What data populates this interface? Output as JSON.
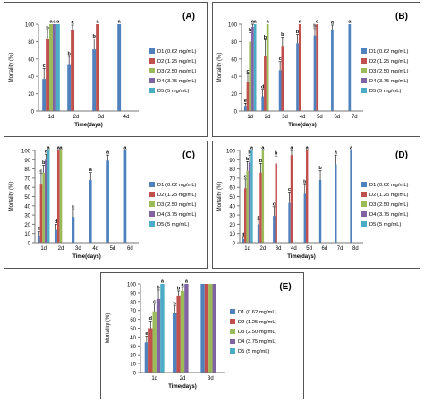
{
  "colors": [
    "#4F81BD",
    "#C0504D",
    "#9BBB59",
    "#8064A2",
    "#4BACC6"
  ],
  "legend": [
    "D1 (0.62 mg/mL)",
    "D2 (1.25 mg/mL)",
    "D3 (2.50 mg/mL)",
    "D4 (3.75 mg/mL)",
    "D5 (5 mg/mL)"
  ],
  "chart_data": [
    {
      "type": "bar",
      "title": "(A)",
      "xlabel": "Time(days)",
      "ylabel": "Mortality (%)",
      "ylim": [
        0,
        100
      ],
      "yticks": [
        "0",
        "20",
        "40",
        "60",
        "80",
        "100"
      ],
      "categories": [
        "1d",
        "2d",
        "3d",
        "4d"
      ],
      "series": [
        {
          "name": "D1 (0.62 mg/mL)",
          "values": [
            37,
            53,
            71,
            100
          ],
          "errors": [
            12,
            10,
            12,
            0
          ],
          "labels": [
            "c",
            "b",
            "b",
            "a"
          ]
        },
        {
          "name": "D2 (1.25 mg/mL)",
          "values": [
            83,
            93,
            100,
            null
          ],
          "errors": [
            10,
            6,
            0,
            null
          ],
          "labels": [
            "b",
            "a",
            "a",
            ""
          ]
        },
        {
          "name": "D3 (2.50 mg/mL)",
          "values": [
            100,
            null,
            null,
            null
          ],
          "errors": [
            0,
            null,
            null,
            null
          ],
          "labels": [
            "a",
            "",
            "",
            ""
          ]
        },
        {
          "name": "D4 (3.75 mg/mL)",
          "values": [
            100,
            null,
            null,
            null
          ],
          "errors": [
            0,
            null,
            null,
            null
          ],
          "labels": [
            "a",
            "",
            "",
            ""
          ]
        },
        {
          "name": "D5 (5 mg/mL)",
          "values": [
            100,
            null,
            null,
            null
          ],
          "errors": [
            0,
            null,
            null,
            null
          ],
          "labels": [
            "a",
            "",
            "",
            ""
          ]
        }
      ]
    },
    {
      "type": "bar",
      "title": "(B)",
      "xlabel": "Time(days)",
      "ylabel": "Mortality (%)",
      "ylim": [
        0,
        100
      ],
      "yticks": [
        "0",
        "20",
        "40",
        "60",
        "80",
        "100"
      ],
      "categories": [
        "1d",
        "2d",
        "3d",
        "4d",
        "5d",
        "6d",
        "7d"
      ],
      "series": [
        {
          "name": "D1 (0.62 mg/mL)",
          "values": [
            6,
            17,
            47,
            78,
            87,
            94,
            100
          ],
          "errors": [
            3,
            8,
            10,
            10,
            8,
            5,
            0
          ],
          "labels": [
            "e",
            "d",
            "c",
            "b",
            "b",
            "a",
            "a"
          ]
        },
        {
          "name": "D2 (1.25 mg/mL)",
          "values": [
            33,
            64,
            75,
            100,
            100,
            null,
            null
          ],
          "errors": [
            10,
            18,
            10,
            0,
            0,
            null,
            null
          ],
          "labels": [
            "c",
            "b",
            "b",
            "a",
            "a",
            "",
            ""
          ]
        },
        {
          "name": "D3 (2.50 mg/mL)",
          "values": [
            80,
            100,
            null,
            null,
            null,
            null,
            null
          ],
          "errors": [
            10,
            0,
            null,
            null,
            null,
            null,
            null
          ],
          "labels": [
            "b",
            "a",
            "",
            "",
            "",
            "",
            ""
          ]
        },
        {
          "name": "D4 (3.75 mg/mL)",
          "values": [
            97,
            null,
            null,
            null,
            null,
            null,
            null
          ],
          "errors": [
            3,
            null,
            null,
            null,
            null,
            null,
            null
          ],
          "labels": [
            "a",
            "",
            "",
            "",
            "",
            "",
            ""
          ]
        },
        {
          "name": "D5 (5 mg/mL)",
          "values": [
            100,
            null,
            null,
            null,
            null,
            null,
            null
          ],
          "errors": [
            0,
            null,
            null,
            null,
            null,
            null,
            null
          ],
          "labels": [
            "a",
            "",
            "",
            "",
            "",
            "",
            ""
          ]
        }
      ]
    },
    {
      "type": "bar",
      "title": "(C)",
      "xlabel": "Time(days)",
      "ylabel": "Mortality (%)",
      "ylim": [
        0,
        100
      ],
      "yticks": [
        "0",
        "10",
        "20",
        "30",
        "40",
        "50",
        "60",
        "70",
        "80",
        "90",
        "100"
      ],
      "categories": [
        "1d",
        "2d",
        "3d",
        "4d",
        "5d",
        "6d"
      ],
      "series": [
        {
          "name": "D1 (0.62 mg/mL)",
          "values": [
            8,
            14,
            28,
            68,
            89,
            100
          ],
          "errors": [
            4,
            6,
            8,
            8,
            6,
            0
          ],
          "labels": [
            "e",
            "d",
            "c",
            "a",
            "a",
            "a"
          ]
        },
        {
          "name": "D2 (1.25 mg/mL)",
          "values": [
            63,
            100,
            null,
            null,
            null,
            null
          ],
          "errors": [
            12,
            0,
            null,
            null,
            null,
            null
          ],
          "labels": [
            "c",
            "a",
            "",
            "",
            "",
            ""
          ]
        },
        {
          "name": "D3 (2.50 mg/mL)",
          "values": [
            76,
            100,
            null,
            null,
            null,
            null
          ],
          "errors": [
            8,
            0,
            null,
            null,
            null,
            null
          ],
          "labels": [
            "b",
            "a",
            "",
            "",
            "",
            ""
          ]
        },
        {
          "name": "D4 (3.75 mg/mL)",
          "values": [
            90,
            null,
            null,
            null,
            null,
            null
          ],
          "errors": [
            6,
            null,
            null,
            null,
            null,
            null
          ],
          "labels": [
            "a",
            "",
            "",
            "",
            "",
            ""
          ]
        },
        {
          "name": "D5 (5 mg/mL)",
          "values": [
            100,
            null,
            null,
            null,
            null,
            null
          ],
          "errors": [
            0,
            null,
            null,
            null,
            null,
            null
          ],
          "labels": [
            "a",
            "",
            "",
            "",
            "",
            ""
          ]
        }
      ]
    },
    {
      "type": "bar",
      "title": "(D)",
      "xlabel": "Time(days)",
      "ylabel": "Mortality (%)",
      "ylim": [
        0,
        100
      ],
      "yticks": [
        "0",
        "10",
        "20",
        "30",
        "40",
        "50",
        "60",
        "70",
        "80",
        "90",
        "100"
      ],
      "categories": [
        "1d",
        "2d",
        "3d",
        "4d",
        "5d",
        "6d",
        "7d",
        "8d"
      ],
      "series": [
        {
          "name": "D1 (0.62 mg/mL)",
          "values": [
            4,
            20,
            29,
            43,
            53,
            68,
            85,
            100
          ],
          "errors": [
            2,
            5,
            10,
            12,
            10,
            10,
            10,
            0
          ],
          "labels": [
            "d",
            "c",
            "c",
            "c",
            "b",
            "b",
            "a",
            "a"
          ]
        },
        {
          "name": "D2 (1.25 mg/mL)",
          "values": [
            59,
            76,
            86,
            95,
            100,
            null,
            null,
            null
          ],
          "errors": [
            10,
            10,
            8,
            5,
            0,
            null,
            null,
            null
          ],
          "labels": [
            "c",
            "b",
            "b",
            "a",
            "a",
            "",
            "",
            ""
          ]
        },
        {
          "name": "D3 (2.50 mg/mL)",
          "values": [
            78,
            100,
            null,
            null,
            null,
            null,
            null,
            null
          ],
          "errors": [
            10,
            0,
            null,
            null,
            null,
            null,
            null,
            null
          ],
          "labels": [
            "b",
            "a",
            "",
            "",
            "",
            "",
            "",
            ""
          ]
        },
        {
          "name": "D4 (3.75 mg/mL)",
          "values": [
            87,
            null,
            null,
            null,
            null,
            null,
            null,
            null
          ],
          "errors": [
            8,
            null,
            null,
            null,
            null,
            null,
            null,
            null
          ],
          "labels": [
            "b",
            "",
            "",
            "",
            "",
            "",
            "",
            ""
          ]
        },
        {
          "name": "D5 (5 mg/mL)",
          "values": [
            100,
            null,
            null,
            null,
            null,
            null,
            null,
            null
          ],
          "errors": [
            0,
            null,
            null,
            null,
            null,
            null,
            null,
            null
          ],
          "labels": [
            "a",
            "",
            "",
            "",
            "",
            "",
            "",
            ""
          ]
        }
      ]
    },
    {
      "type": "bar",
      "title": "(E)",
      "xlabel": "Time(days)",
      "ylabel": "Mortality (%)",
      "ylim": [
        0,
        100
      ],
      "yticks": [
        "0",
        "10",
        "20",
        "30",
        "40",
        "50",
        "60",
        "70",
        "80",
        "90",
        "100"
      ],
      "categories": [
        "1d",
        "2d",
        "3d"
      ],
      "series": [
        {
          "name": "D1 (0.62 mg/mL)",
          "values": [
            34,
            67,
            100
          ],
          "errors": [
            7,
            8,
            0
          ],
          "labels": [
            "e",
            "b",
            ""
          ]
        },
        {
          "name": "D2 (1.25 mg/mL)",
          "values": [
            50,
            87,
            100
          ],
          "errors": [
            8,
            5,
            0
          ],
          "labels": [
            "d",
            "b",
            ""
          ]
        },
        {
          "name": "D3 (2.50 mg/mL)",
          "values": [
            69,
            92,
            100
          ],
          "errors": [
            8,
            4,
            0
          ],
          "labels": [
            "c",
            "a",
            ""
          ]
        },
        {
          "name": "D4 (3.75 mg/mL)",
          "values": [
            83,
            100,
            100
          ],
          "errors": [
            10,
            0,
            0
          ],
          "labels": [
            "b",
            "a",
            ""
          ]
        },
        {
          "name": "D5 (5 mg/mL)",
          "values": [
            100,
            null,
            null
          ],
          "errors": [
            0,
            null,
            null
          ],
          "labels": [
            "a",
            "",
            ""
          ]
        }
      ]
    }
  ]
}
